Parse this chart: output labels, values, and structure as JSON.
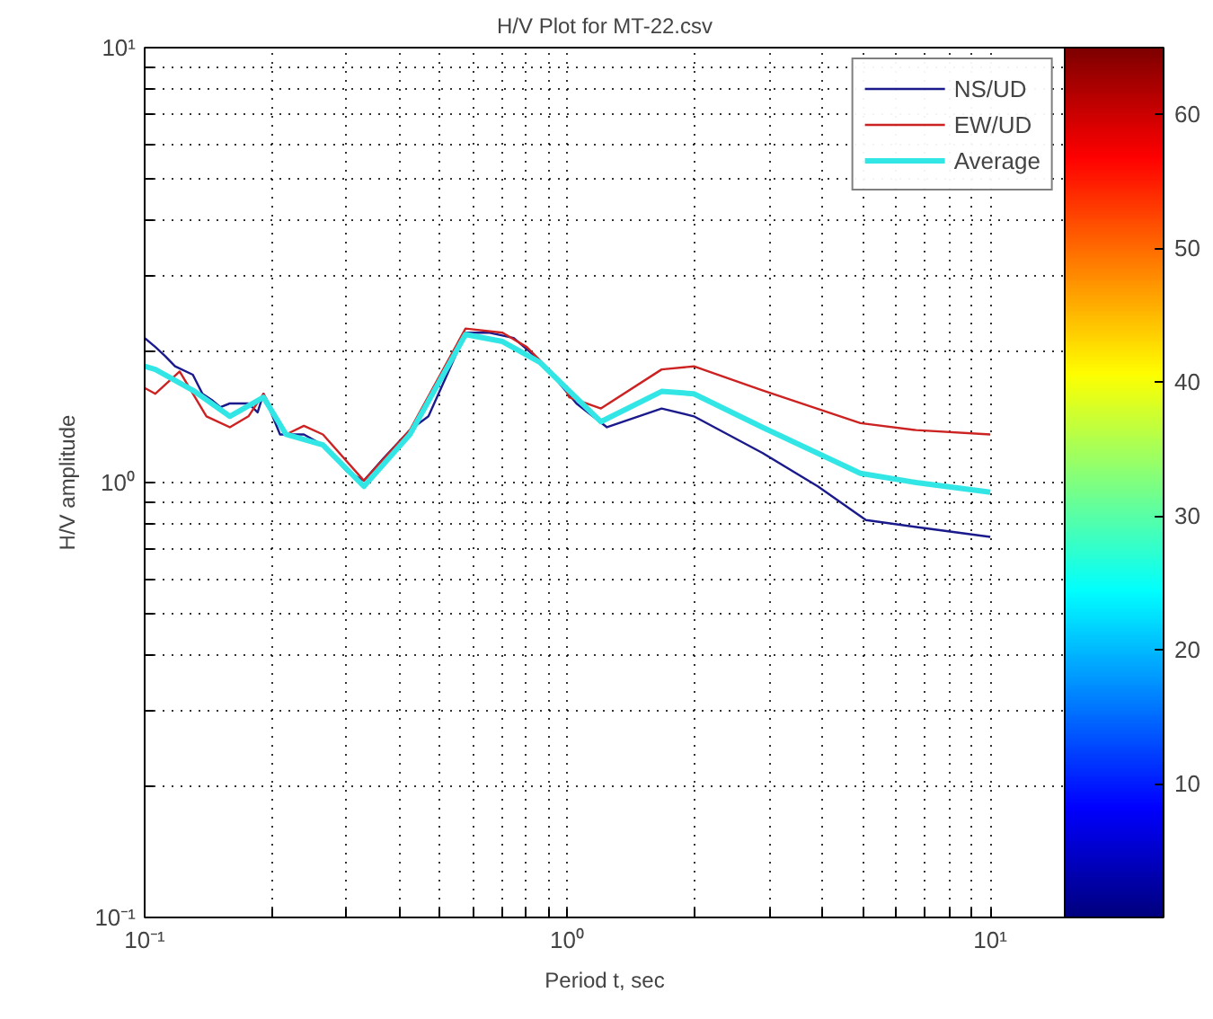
{
  "chart_data": {
    "type": "line",
    "title": "H/V Plot for MT-22.csv",
    "xlabel": "Period t, sec",
    "ylabel": "H/V amplitude",
    "log": "xy",
    "grid": true,
    "legend": "top right",
    "marker": "none",
    "line_style": "solid",
    "xlim": [
      0.1,
      15
    ],
    "ylim": [
      0.1,
      10
    ],
    "xticks": [
      {
        "value": 0.1,
        "label": "10⁻¹"
      },
      {
        "value": 0.2,
        "label": null
      },
      {
        "value": 0.3,
        "label": null
      },
      {
        "value": 0.4,
        "label": null
      },
      {
        "value": 0.5,
        "label": null
      },
      {
        "value": 0.6,
        "label": null
      },
      {
        "value": 0.7,
        "label": null
      },
      {
        "value": 0.8,
        "label": null
      },
      {
        "value": 0.9,
        "label": null
      },
      {
        "value": 1,
        "label": "10⁰"
      },
      {
        "value": 2,
        "label": null
      },
      {
        "value": 3,
        "label": null
      },
      {
        "value": 4,
        "label": null
      },
      {
        "value": 5,
        "label": null
      },
      {
        "value": 6,
        "label": null
      },
      {
        "value": 7,
        "label": null
      },
      {
        "value": 8,
        "label": null
      },
      {
        "value": 9,
        "label": null
      },
      {
        "value": 10,
        "label": "10¹"
      }
    ],
    "yticks": [
      {
        "value": 0.1,
        "label": "10⁻¹"
      },
      {
        "value": 0.2,
        "label": null
      },
      {
        "value": 0.3,
        "label": null
      },
      {
        "value": 0.4,
        "label": null
      },
      {
        "value": 0.5,
        "label": null
      },
      {
        "value": 0.6,
        "label": null
      },
      {
        "value": 0.7,
        "label": null
      },
      {
        "value": 0.8,
        "label": null
      },
      {
        "value": 0.9,
        "label": null
      },
      {
        "value": 1,
        "label": "10⁰"
      },
      {
        "value": 2,
        "label": null
      },
      {
        "value": 3,
        "label": null
      },
      {
        "value": 4,
        "label": null
      },
      {
        "value": 5,
        "label": null
      },
      {
        "value": 6,
        "label": null
      },
      {
        "value": 7,
        "label": null
      },
      {
        "value": 8,
        "label": null
      },
      {
        "value": 9,
        "label": null
      },
      {
        "value": 10,
        "label": "10¹"
      }
    ],
    "clim": [
      0,
      65
    ],
    "cticks": [
      10,
      20,
      30,
      40,
      50,
      60
    ],
    "series": [
      {
        "name": "NS/UD",
        "color": "#1a1a8c",
        "x": [
          0.1,
          0.106,
          0.112,
          0.118,
          0.13,
          0.137,
          0.144,
          0.151,
          0.159,
          0.176,
          0.185,
          0.191,
          0.209,
          0.238,
          0.264,
          0.301,
          0.33,
          0.368,
          0.424,
          0.469,
          0.519,
          0.574,
          0.655,
          0.746,
          0.86,
          1.05,
          1.24,
          1.67,
          1.99,
          2.89,
          3.91,
          5.08,
          6.68,
          10
        ],
        "values": [
          2.15,
          2.05,
          1.95,
          1.85,
          1.77,
          1.6,
          1.55,
          1.49,
          1.52,
          1.52,
          1.45,
          1.6,
          1.29,
          1.29,
          1.22,
          1.06,
          1.01,
          1.14,
          1.32,
          1.42,
          1.77,
          2.21,
          2.21,
          2.15,
          1.91,
          1.52,
          1.34,
          1.48,
          1.42,
          1.17,
          0.98,
          0.82,
          0.79,
          0.75
        ]
      },
      {
        "name": "EW/UD",
        "color": "#cc2222",
        "x": [
          0.1,
          0.106,
          0.121,
          0.14,
          0.159,
          0.176,
          0.191,
          0.216,
          0.238,
          0.264,
          0.33,
          0.424,
          0.574,
          0.702,
          0.801,
          0.98,
          1.01,
          1.2,
          1.67,
          1.99,
          2.89,
          4.93,
          6.68,
          10
        ],
        "values": [
          1.65,
          1.6,
          1.8,
          1.42,
          1.34,
          1.42,
          1.6,
          1.29,
          1.35,
          1.29,
          1.01,
          1.32,
          2.26,
          2.21,
          2.05,
          1.68,
          1.57,
          1.48,
          1.82,
          1.85,
          1.63,
          1.37,
          1.32,
          1.29
        ]
      },
      {
        "name": "Average",
        "color": "#33e6e6",
        "x": [
          0.1,
          0.106,
          0.13,
          0.159,
          0.191,
          0.216,
          0.264,
          0.33,
          0.424,
          0.574,
          0.702,
          0.86,
          1.2,
          1.67,
          1.99,
          2.89,
          4.93,
          6.68,
          10
        ],
        "values": [
          1.85,
          1.82,
          1.63,
          1.42,
          1.57,
          1.29,
          1.22,
          0.98,
          1.29,
          2.19,
          2.11,
          1.89,
          1.38,
          1.62,
          1.6,
          1.34,
          1.05,
          1.0,
          0.95
        ]
      }
    ]
  }
}
